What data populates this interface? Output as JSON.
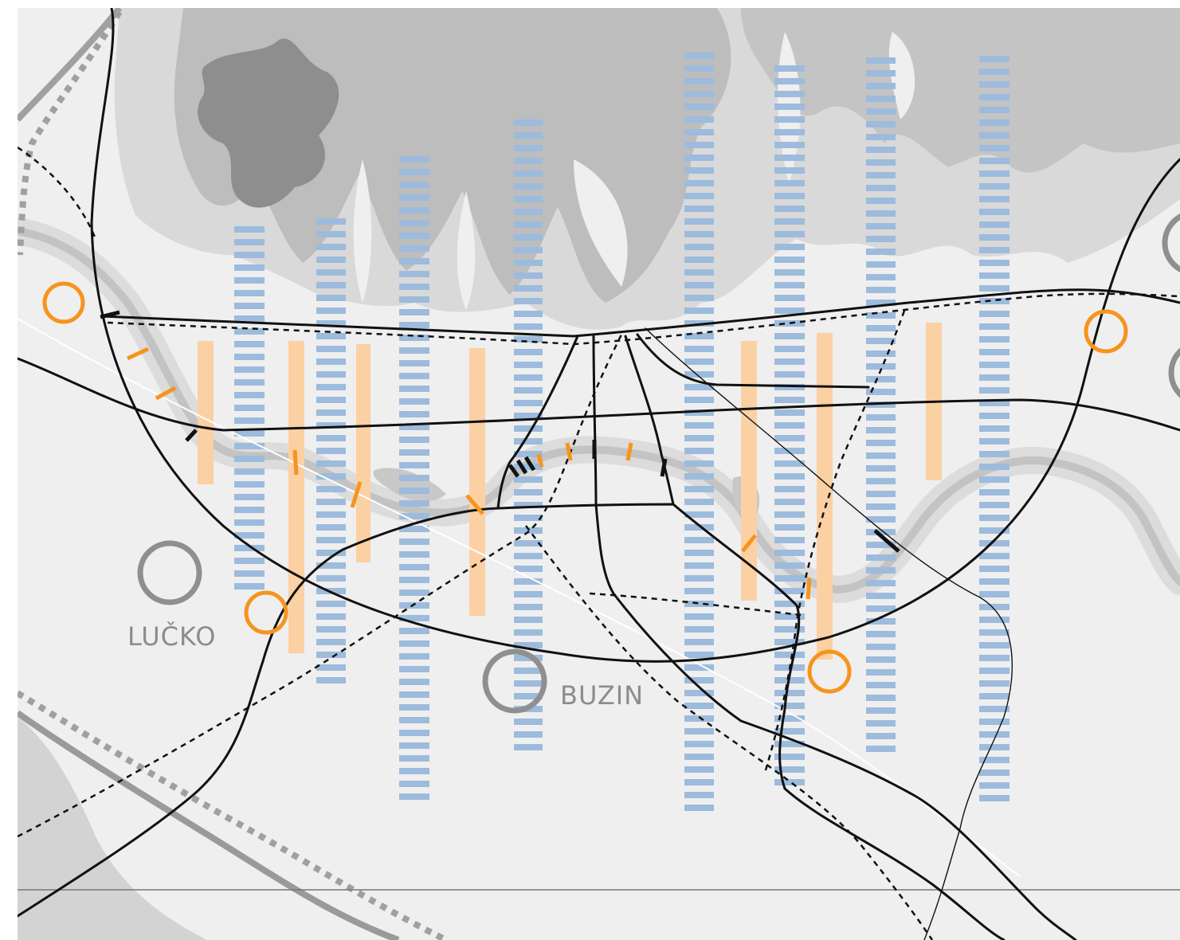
{
  "map": {
    "places": [
      {
        "label": "LUČKO"
      },
      {
        "label": "BUZIN"
      }
    ],
    "colors": {
      "background": "#efefef",
      "hill_light": "#d6d6d6",
      "hill_mid": "#b8b8b8",
      "hill_dark": "#8e8e8e",
      "road": "#111111",
      "rail": "#9a9a9a",
      "river": "#c9c9c9",
      "blue_corridor": "#9dbbdc",
      "orange_corridor": "#fbd0a3",
      "orange_accent": "#f7941d",
      "settlement_ring": "#8f8f8f"
    },
    "legend_icons": [
      "orange-node-icon",
      "settlement-ring-icon"
    ]
  }
}
